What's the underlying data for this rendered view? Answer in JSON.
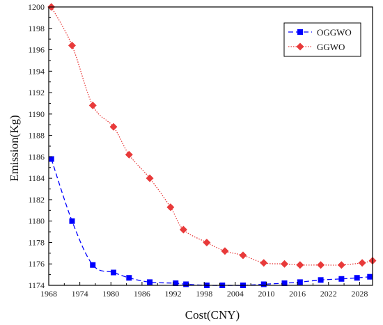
{
  "chart_data": {
    "type": "line",
    "title": "",
    "xlabel": "Cost(CNY)",
    "ylabel": "Emission(Kg)",
    "xlim": [
      1968,
      2030.5
    ],
    "ylim": [
      1174,
      1200
    ],
    "xticks": [
      1968,
      1974,
      1980,
      1986,
      1992,
      1998,
      2004,
      2010,
      2016,
      2022,
      2028
    ],
    "yticks": [
      1174,
      1176,
      1178,
      1180,
      1182,
      1184,
      1186,
      1188,
      1190,
      1192,
      1194,
      1196,
      1198,
      1200
    ],
    "grid": false,
    "legend_position": "top-right",
    "series": [
      {
        "name": "OGGWO",
        "color": "#0000ff",
        "line_style": "dashed",
        "marker": "square",
        "x": [
          1968.5,
          1972.5,
          1976.5,
          1980.5,
          1983.5,
          1987.5,
          1992.5,
          1994.5,
          1998.5,
          2001.5,
          2005.5,
          2009.5,
          2013.5,
          2016.5,
          2020.5,
          2024.5,
          2027.5,
          2030
        ],
        "y": [
          1185.8,
          1180.0,
          1175.9,
          1175.2,
          1174.7,
          1174.3,
          1174.2,
          1174.1,
          1174.0,
          1174.0,
          1174.0,
          1174.1,
          1174.2,
          1174.3,
          1174.5,
          1174.6,
          1174.7,
          1174.8
        ]
      },
      {
        "name": "GGWO",
        "color": "#e83a3a",
        "line_style": "dotted",
        "marker": "diamond",
        "x": [
          1968.5,
          1972.5,
          1976.5,
          1980.5,
          1983.5,
          1987.5,
          1991.5,
          1994,
          1998.5,
          2002,
          2005.5,
          2009.5,
          2013.5,
          2016.5,
          2020.5,
          2024.5,
          2028.5,
          2030.5
        ],
        "y": [
          1200.0,
          1196.4,
          1190.8,
          1188.8,
          1186.2,
          1184.0,
          1181.3,
          1179.2,
          1178.0,
          1177.2,
          1176.8,
          1176.1,
          1176.0,
          1175.9,
          1175.9,
          1175.9,
          1176.1,
          1176.3
        ]
      }
    ]
  }
}
